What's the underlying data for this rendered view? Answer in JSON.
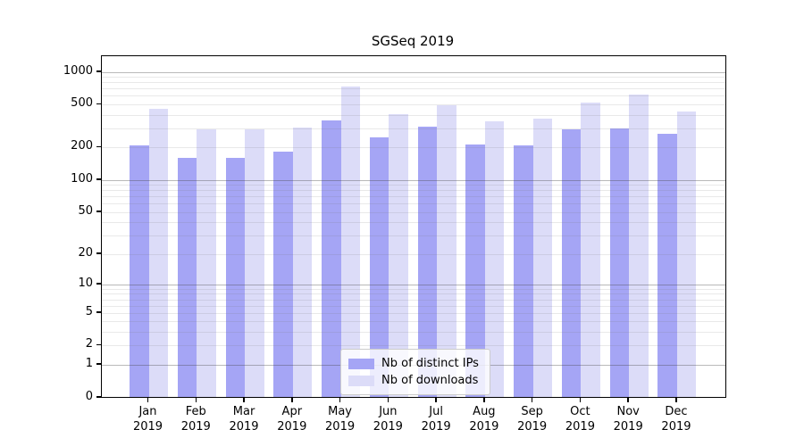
{
  "title": "SGSeq 2019",
  "chart_data": {
    "type": "bar",
    "title": "SGSeq 2019",
    "categories": [
      "Jan",
      "Feb",
      "Mar",
      "Apr",
      "May",
      "Jun",
      "Jul",
      "Aug",
      "Sep",
      "Oct",
      "Nov",
      "Dec"
    ],
    "category_year": "2019",
    "series": [
      {
        "name": "Nb of distinct IPs",
        "color": "#a5a5f5",
        "values": [
          211,
          161,
          160,
          182,
          356,
          246,
          314,
          214,
          211,
          296,
          299,
          269
        ]
      },
      {
        "name": "Nb of downloads",
        "color": "#dcdcf8",
        "values": [
          458,
          296,
          297,
          303,
          733,
          410,
          489,
          348,
          371,
          519,
          614,
          432
        ]
      }
    ],
    "yscale": "log1p",
    "ylim": [
      0,
      1000
    ],
    "yticks": [
      0,
      1,
      2,
      5,
      10,
      20,
      50,
      100,
      200,
      500,
      1000
    ],
    "grid_major_at": [
      1,
      10,
      100,
      1000
    ],
    "grid_minor_pattern": "2-9 per decade (2..9, 20..90, 200..900)",
    "legend_position": "inside bottom-center",
    "xlabel": "",
    "ylabel": ""
  },
  "legend": {
    "item1": "Nb of distinct IPs",
    "item2": "Nb of downloads"
  },
  "colors": {
    "bar_distinct_ips": "#a5a5f5",
    "bar_downloads": "#dcdcf8",
    "grid_major": "#b6b6b6",
    "grid_minor": "#e8e8e8",
    "axis": "#000000",
    "legend_border": "#cccccc"
  }
}
